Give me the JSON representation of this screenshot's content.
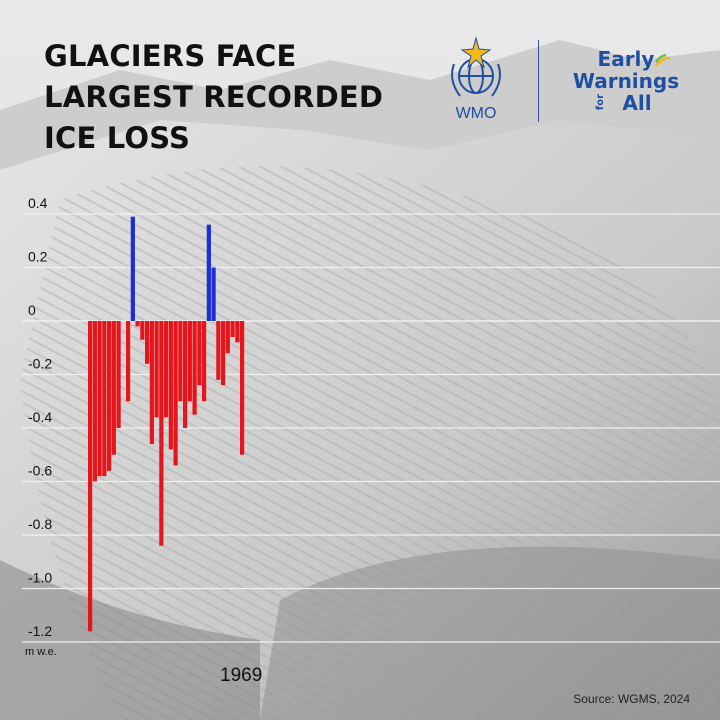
{
  "header": {
    "title_lines": [
      "GLACIERS FACE",
      "LARGEST RECORDED",
      "ICE LOSS"
    ],
    "wmo_label": "WMO",
    "ew_line1": "Early",
    "ew_line2": "Warnings",
    "ew_for": "for",
    "ew_all": "All"
  },
  "footer": {
    "source": "Source: WGMS, 2024",
    "year": "1969"
  },
  "colors": {
    "positive": "#1c2fd6",
    "negative": "#e8141b",
    "grid": "#f2f2f2",
    "brand_blue": "#1f4fa0"
  },
  "chart_data": {
    "type": "bar",
    "title": "GLACIERS FACE LARGEST RECORDED ICE LOSS",
    "ylabel": "m w.e.",
    "ylim": [
      -1.2,
      0.4
    ],
    "yticks": [
      0.4,
      0.2,
      0,
      -0.2,
      -0.4,
      -0.6,
      -0.8,
      -1.0,
      -1.2
    ],
    "ytick_labels": [
      "0.4",
      "0.2",
      "0",
      "-0.2",
      "-0.4",
      "-0.6",
      "-0.8",
      "-1.0",
      "-1.2"
    ],
    "grid": true,
    "x_start_label": "1969",
    "values": [
      -1.16,
      -0.6,
      -0.58,
      -0.58,
      -0.56,
      -0.5,
      -0.4,
      -0.0,
      -0.3,
      0.39,
      -0.02,
      -0.07,
      -0.16,
      -0.46,
      -0.36,
      -0.84,
      -0.36,
      -0.48,
      -0.54,
      -0.3,
      -0.4,
      -0.3,
      -0.35,
      -0.24,
      -0.3,
      0.36,
      0.2,
      -0.22,
      -0.24,
      -0.12,
      -0.06,
      -0.08,
      -0.5
    ]
  }
}
